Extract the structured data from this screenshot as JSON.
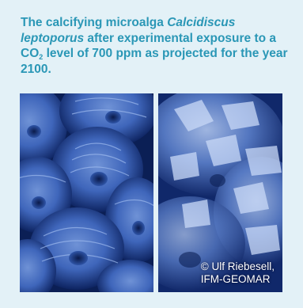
{
  "caption": {
    "part1": "The calcifying microalga ",
    "species": "Calcidiscus leptoporus",
    "part2": " after experimental exposure to a CO",
    "subscript": "2",
    "part3": " level of 700 ppm as projected for the year 2100."
  },
  "credit": {
    "line1": "© Ulf Riebesell,",
    "line2": "IFM-GEOMAR"
  },
  "colors": {
    "background": "#e3f1f7",
    "caption_text": "#2a97b6",
    "photo_dark": "#0b1f55",
    "photo_light": "#a9c4f2"
  }
}
